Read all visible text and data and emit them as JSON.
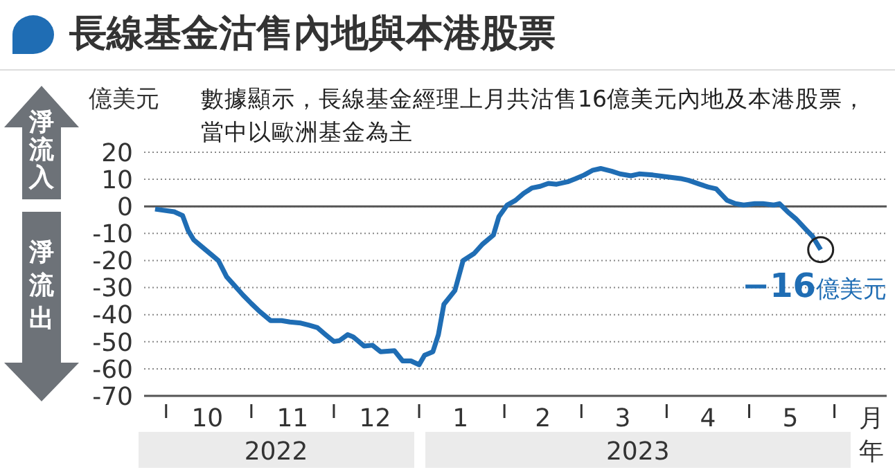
{
  "chart_data": {
    "type": "line",
    "title": "長線基金沽售內地與本港股票",
    "subtitle": "數據顯示，長線基金經理上月共沽售16億美元內地及本港股票，當中以歐洲基金為主",
    "ylabel": "億美元",
    "annotations": [
      "淨流入",
      "淨流出",
      "2022",
      "2023",
      "月",
      "年",
      {
        "text": "−16億美元",
        "x": "2023-05-27",
        "y": -16
      }
    ],
    "x": [
      "2022-09-27",
      "2022-10-04",
      "2022-10-07",
      "2022-10-09",
      "2022-10-11",
      "2022-10-14",
      "2022-10-18",
      "2022-10-20",
      "2022-10-23",
      "2022-10-26",
      "2022-10-29",
      "2022-11-01",
      "2022-11-04",
      "2022-11-08",
      "2022-11-12",
      "2022-11-15",
      "2022-11-19",
      "2022-11-22",
      "2022-11-25",
      "2022-11-28",
      "2022-12-01",
      "2022-12-03",
      "2022-12-06",
      "2022-12-08",
      "2022-12-12",
      "2022-12-15",
      "2022-12-18",
      "2022-12-23",
      "2022-12-26",
      "2022-12-29",
      "2023-01-01",
      "2023-01-03",
      "2023-01-06",
      "2023-01-08",
      "2023-01-10",
      "2023-01-14",
      "2023-01-17",
      "2023-01-21",
      "2023-01-24",
      "2023-01-28",
      "2023-01-30",
      "2023-02-02",
      "2023-02-05",
      "2023-02-08",
      "2023-02-11",
      "2023-02-14",
      "2023-02-17",
      "2023-02-20",
      "2023-02-24",
      "2023-02-27",
      "2023-03-02",
      "2023-03-05",
      "2023-03-08",
      "2023-03-12",
      "2023-03-15",
      "2023-03-19",
      "2023-03-22",
      "2023-03-27",
      "2023-04-01",
      "2023-04-06",
      "2023-04-09",
      "2023-04-13",
      "2023-04-16",
      "2023-04-19",
      "2023-04-23",
      "2023-04-26",
      "2023-04-29",
      "2023-05-03",
      "2023-05-06",
      "2023-05-10",
      "2023-05-12",
      "2023-05-15",
      "2023-05-18",
      "2023-05-22",
      "2023-05-24",
      "2023-05-27"
    ],
    "series": [
      {
        "color": "#1f6db4",
        "values": [
          -1,
          -2,
          -3.4,
          -8.9,
          -12.3,
          -14.9,
          -18.3,
          -20,
          -26,
          -29.4,
          -32.8,
          -35.9,
          -38.8,
          -42.2,
          -42.2,
          -42.7,
          -43.1,
          -43.9,
          -44.8,
          -47.4,
          -49.9,
          -49.6,
          -47.4,
          -48.2,
          -51.6,
          -51.3,
          -53.7,
          -53.3,
          -57.1,
          -57.1,
          -58.5,
          -55,
          -53.7,
          -47.4,
          -36.2,
          -31.1,
          -20,
          -17.4,
          -14,
          -10.6,
          -3.8,
          0.5,
          2.2,
          4.8,
          6.8,
          7.4,
          8.5,
          8.2,
          9.1,
          10.3,
          11.6,
          13.3,
          14,
          13,
          12,
          11.3,
          12,
          11.6,
          10.9,
          10.3,
          9.6,
          8.2,
          7.2,
          6.5,
          2.2,
          1,
          0.5,
          1,
          1,
          0.5,
          1,
          -2,
          -4.6,
          -8.9,
          -11,
          -16
        ]
      }
    ],
    "xlim": [
      "2022-09-23",
      "2023-06-20"
    ],
    "xticks": [
      {
        "value": "2022-10-01",
        "label": null
      },
      {
        "value": "2022-10-16",
        "label": "10"
      },
      {
        "value": "2022-11-01",
        "label": null
      },
      {
        "value": "2022-11-16",
        "label": "11"
      },
      {
        "value": "2022-12-01",
        "label": null
      },
      {
        "value": "2022-12-16",
        "label": "12"
      },
      {
        "value": "2023-01-01",
        "label": null
      },
      {
        "value": "2023-01-16",
        "label": "1"
      },
      {
        "value": "2023-02-01",
        "label": null
      },
      {
        "value": "2023-02-15",
        "label": "2"
      },
      {
        "value": "2023-03-01",
        "label": null
      },
      {
        "value": "2023-03-16",
        "label": "3"
      },
      {
        "value": "2023-04-01",
        "label": null
      },
      {
        "value": "2023-04-16",
        "label": "4"
      },
      {
        "value": "2023-05-01",
        "label": null
      },
      {
        "value": "2023-05-16",
        "label": "5"
      },
      {
        "value": "2023-06-01",
        "label": null
      }
    ],
    "ylim": [
      -70,
      20
    ],
    "yticks": [
      -70,
      -60,
      -50,
      -40,
      -30,
      -20,
      -10,
      0,
      10,
      20
    ],
    "grid": "y",
    "line_style": "solid",
    "ref_lines": [
      {
        "axis": "y",
        "value": 0,
        "color": "#555555"
      }
    ]
  }
}
